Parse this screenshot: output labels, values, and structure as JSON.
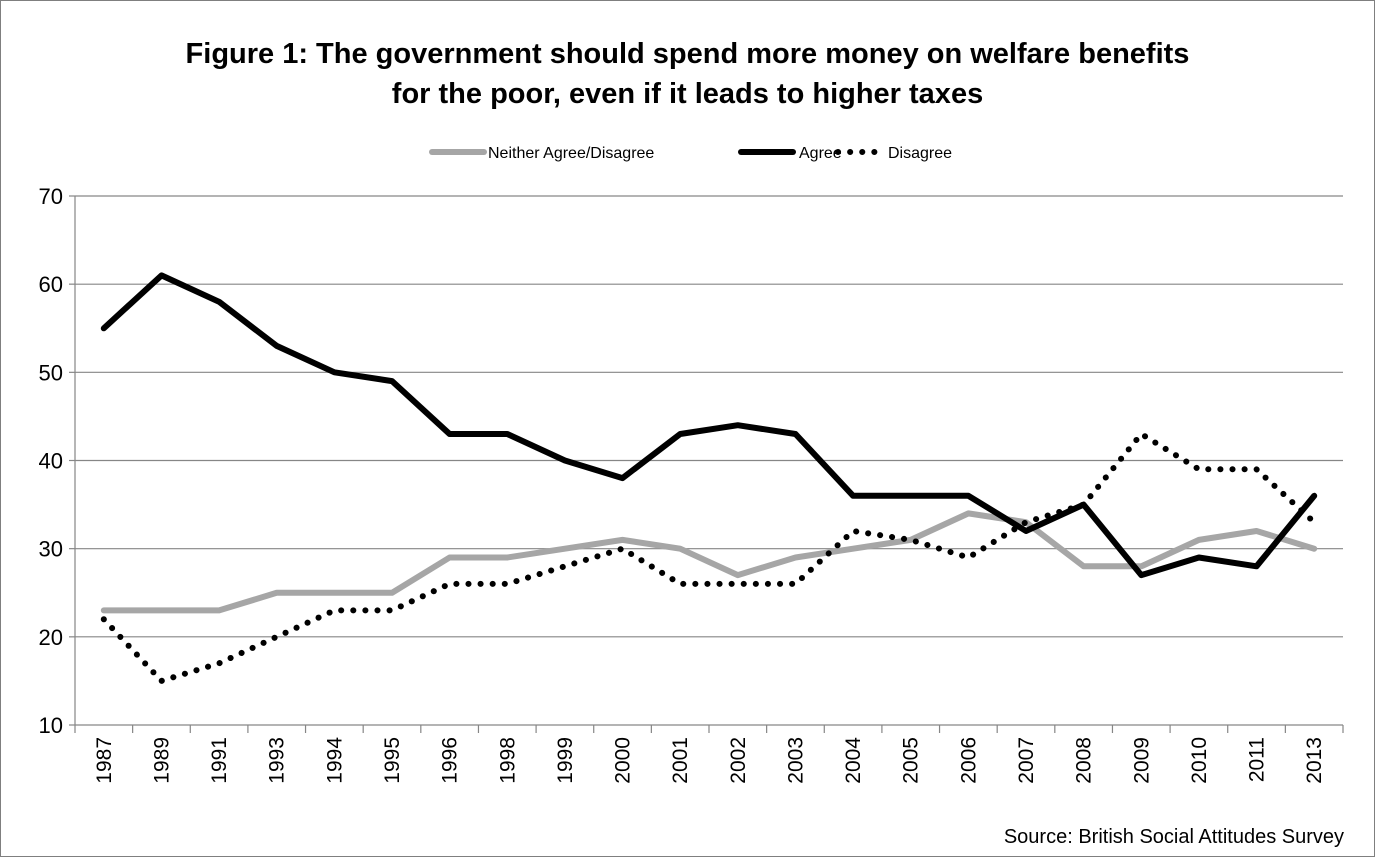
{
  "chart_data": {
    "type": "line",
    "title_line1": "Figure 1: The government should spend more money on welfare benefits",
    "title_line2": "for the poor, even if it leads to higher taxes",
    "xlabel": "",
    "ylabel": "",
    "ylim": [
      10,
      70
    ],
    "yticks": [
      10,
      20,
      30,
      40,
      50,
      60,
      70
    ],
    "grid": true,
    "legend_position": "top",
    "categories": [
      "1987",
      "1989",
      "1991",
      "1993",
      "1994",
      "1995",
      "1996",
      "1998",
      "1999",
      "2000",
      "2001",
      "2002",
      "2003",
      "2004",
      "2005",
      "2006",
      "2007",
      "2008",
      "2009",
      "2010",
      "2011",
      "2013"
    ],
    "series": [
      {
        "name": "Neither Agree/Disagree",
        "style": "solid-gray",
        "color": "#a6a6a6",
        "values": [
          23,
          23,
          23,
          25,
          25,
          25,
          29,
          29,
          30,
          31,
          30,
          27,
          29,
          30,
          31,
          34,
          33,
          28,
          28,
          31,
          32,
          30
        ]
      },
      {
        "name": "Agree",
        "style": "solid-black",
        "color": "#000000",
        "values": [
          55,
          61,
          58,
          53,
          50,
          49,
          43,
          43,
          40,
          38,
          43,
          44,
          43,
          36,
          36,
          36,
          32,
          35,
          27,
          29,
          28,
          36
        ]
      },
      {
        "name": "Disagree",
        "style": "dotted-black",
        "color": "#000000",
        "values": [
          22,
          15,
          17,
          20,
          23,
          23,
          26,
          26,
          28,
          30,
          26,
          26,
          26,
          32,
          31,
          29,
          33,
          35,
          43,
          39,
          39,
          33
        ]
      }
    ],
    "source_note": "Source:  British Social Attitudes Survey"
  }
}
